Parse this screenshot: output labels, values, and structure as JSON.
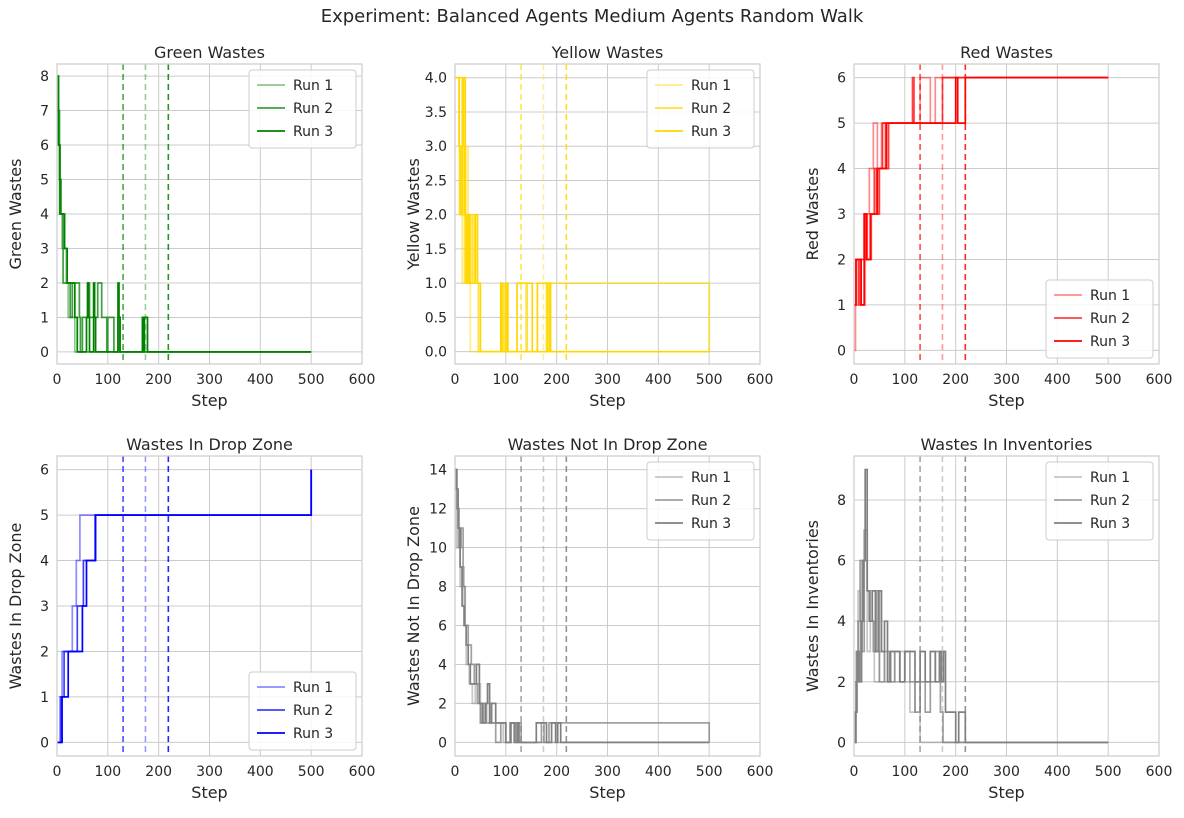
{
  "suptitle": "Experiment: Balanced Agents Medium Agents Random Walk",
  "chart_data": [
    {
      "type": "line",
      "title": "Green Wastes",
      "xlabel": "Step",
      "ylabel": "Green Wastes",
      "xlim": [
        0,
        600
      ],
      "ylim": [
        -0.35,
        8.35
      ],
      "xticks": [
        0,
        100,
        200,
        300,
        400,
        500,
        600
      ],
      "yticks": [
        0,
        1,
        2,
        3,
        4,
        5,
        6,
        7,
        8
      ],
      "ytick_labels": [
        "0",
        "1",
        "2",
        "3",
        "4",
        "5",
        "6",
        "7",
        "8"
      ],
      "grid": true,
      "legend": "upper right",
      "vlines": [
        {
          "x": 130,
          "alpha": 0.7
        },
        {
          "x": 174,
          "alpha": 0.4
        },
        {
          "x": 219,
          "alpha": 0.85
        }
      ],
      "series": [
        {
          "name": "Run 1",
          "color": "#008000",
          "alpha": 0.45,
          "x": [
            0,
            3,
            5,
            10,
            12,
            18,
            22,
            26,
            35,
            130,
            500
          ],
          "y": [
            8,
            6,
            4,
            3,
            3,
            2,
            1,
            1,
            0,
            0,
            0
          ]
        },
        {
          "name": "Run 2",
          "color": "#008000",
          "alpha": 0.75,
          "x": [
            0,
            5,
            8,
            12,
            20,
            26,
            30,
            44,
            46,
            50,
            58,
            62,
            64,
            78,
            80,
            88,
            92,
            98,
            100,
            110,
            112,
            120,
            124,
            174,
            500
          ],
          "y": [
            7,
            5,
            4,
            2,
            2,
            1,
            2,
            1,
            0,
            1,
            1,
            2,
            1,
            1,
            2,
            1,
            1,
            0,
            1,
            1,
            0,
            1,
            0,
            0,
            0
          ]
        },
        {
          "name": "Run 3",
          "color": "#008000",
          "alpha": 1.0,
          "x": [
            0,
            3,
            6,
            10,
            15,
            20,
            25,
            35,
            40,
            58,
            60,
            62,
            64,
            70,
            72,
            74,
            76,
            100,
            120,
            122,
            124,
            166,
            168,
            170,
            172,
            175,
            178,
            500
          ],
          "y": [
            8,
            6,
            4,
            4,
            3,
            2,
            2,
            1,
            0,
            1,
            2,
            1,
            0,
            0,
            2,
            1,
            0,
            0,
            2,
            1,
            0,
            0,
            1,
            0,
            1,
            1,
            0,
            0
          ]
        }
      ]
    },
    {
      "type": "line",
      "title": "Yellow Wastes",
      "xlabel": "Step",
      "ylabel": "Yellow Wastes",
      "xlim": [
        0,
        600
      ],
      "ylim": [
        -0.18,
        4.2
      ],
      "xticks": [
        0,
        100,
        200,
        300,
        400,
        500,
        600
      ],
      "yticks": [
        0,
        0.5,
        1.0,
        1.5,
        2.0,
        2.5,
        3.0,
        3.5,
        4.0
      ],
      "ytick_labels": [
        "0.0",
        "0.5",
        "1.0",
        "1.5",
        "2.0",
        "2.5",
        "3.0",
        "3.5",
        "4.0"
      ],
      "grid": true,
      "legend": "upper right",
      "vlines": [
        {
          "x": 130,
          "alpha": 0.7
        },
        {
          "x": 174,
          "alpha": 0.4
        },
        {
          "x": 219,
          "alpha": 0.85
        }
      ],
      "series": [
        {
          "name": "Run 1",
          "color": "#FFD700",
          "alpha": 0.45,
          "x": [
            0,
            6,
            8,
            12,
            14,
            18,
            20,
            24,
            26,
            28,
            30,
            500
          ],
          "y": [
            4,
            4,
            2,
            3,
            1,
            4,
            2,
            3,
            1,
            2,
            0,
            0
          ]
        },
        {
          "name": "Run 2",
          "color": "#FFD700",
          "alpha": 0.75,
          "x": [
            0,
            10,
            14,
            18,
            20,
            24,
            26,
            30,
            34,
            38,
            44,
            46,
            48,
            95,
            97,
            100,
            103,
            140,
            142,
            180,
            500
          ],
          "y": [
            4,
            4,
            2,
            3,
            1,
            2,
            1,
            2,
            1,
            2,
            1,
            0,
            0,
            1,
            0,
            1,
            0,
            1,
            0,
            1,
            0
          ]
        },
        {
          "name": "Run 3",
          "color": "#FFD700",
          "alpha": 1.0,
          "x": [
            0,
            8,
            10,
            14,
            16,
            20,
            22,
            26,
            28,
            34,
            40,
            44,
            48,
            50,
            88,
            90,
            92,
            100,
            102,
            104,
            120,
            122,
            150,
            152,
            160,
            162,
            180,
            182,
            186,
            188,
            500
          ],
          "y": [
            4,
            3,
            2,
            3,
            4,
            2,
            1,
            2,
            1,
            1,
            2,
            1,
            1,
            0,
            0,
            1,
            0,
            0,
            1,
            0,
            0,
            1,
            1,
            0,
            0,
            1,
            1,
            0,
            1,
            0,
            0
          ]
        }
      ]
    },
    {
      "type": "line",
      "title": "Red Wastes",
      "xlabel": "Step",
      "ylabel": "Red Wastes",
      "xlim": [
        0,
        600
      ],
      "ylim": [
        -0.3,
        6.3
      ],
      "xticks": [
        0,
        100,
        200,
        300,
        400,
        500,
        600
      ],
      "yticks": [
        0,
        1,
        2,
        3,
        4,
        5,
        6
      ],
      "ytick_labels": [
        "0",
        "1",
        "2",
        "3",
        "4",
        "5",
        "6"
      ],
      "grid": true,
      "legend": "lower right",
      "vlines": [
        {
          "x": 130,
          "alpha": 0.7
        },
        {
          "x": 174,
          "alpha": 0.4
        },
        {
          "x": 219,
          "alpha": 0.85
        }
      ],
      "series": [
        {
          "name": "Run 1",
          "color": "#FF0000",
          "alpha": 0.45,
          "x": [
            0,
            3,
            8,
            14,
            22,
            30,
            38,
            46,
            54,
            62,
            130,
            150,
            160,
            500
          ],
          "y": [
            0,
            1,
            2,
            1,
            3,
            4,
            5,
            4,
            5,
            5,
            6,
            5,
            6,
            6
          ]
        },
        {
          "name": "Run 2",
          "color": "#FF0000",
          "alpha": 0.75,
          "x": [
            0,
            4,
            10,
            14,
            20,
            26,
            34,
            40,
            44,
            50,
            56,
            62,
            68,
            76,
            115,
            118,
            125,
            174,
            500
          ],
          "y": [
            1,
            2,
            1,
            2,
            3,
            2,
            3,
            4,
            3,
            4,
            5,
            4,
            5,
            5,
            6,
            5,
            5,
            6,
            6
          ]
        },
        {
          "name": "Run 3",
          "color": "#FF0000",
          "alpha": 1.0,
          "x": [
            0,
            4,
            10,
            14,
            20,
            24,
            32,
            40,
            46,
            52,
            58,
            64,
            72,
            130,
            180,
            200,
            204,
            212,
            219,
            500
          ],
          "y": [
            1,
            2,
            2,
            1,
            3,
            2,
            3,
            3,
            4,
            4,
            4,
            5,
            5,
            5,
            5,
            6,
            5,
            5,
            6,
            6
          ]
        }
      ]
    },
    {
      "type": "line",
      "title": "Wastes In Drop Zone",
      "xlabel": "Step",
      "ylabel": "Wastes In Drop Zone",
      "xlim": [
        0,
        600
      ],
      "ylim": [
        -0.3,
        6.3
      ],
      "xticks": [
        0,
        100,
        200,
        300,
        400,
        500,
        600
      ],
      "yticks": [
        0,
        1,
        2,
        3,
        4,
        5,
        6
      ],
      "ytick_labels": [
        "0",
        "1",
        "2",
        "3",
        "4",
        "5",
        "6"
      ],
      "grid": true,
      "legend": "lower right",
      "vlines": [
        {
          "x": 130,
          "alpha": 0.7
        },
        {
          "x": 174,
          "alpha": 0.4
        },
        {
          "x": 219,
          "alpha": 0.85
        }
      ],
      "series": [
        {
          "name": "Run 1",
          "color": "#0000FF",
          "alpha": 0.45,
          "x": [
            0,
            6,
            10,
            20,
            30,
            38,
            45,
            130,
            500
          ],
          "y": [
            0,
            1,
            2,
            2,
            3,
            4,
            5,
            5,
            6
          ]
        },
        {
          "name": "Run 2",
          "color": "#0000FF",
          "alpha": 0.75,
          "x": [
            0,
            8,
            14,
            25,
            40,
            52,
            75,
            174,
            500
          ],
          "y": [
            0,
            1,
            2,
            2,
            3,
            4,
            5,
            5,
            6
          ]
        },
        {
          "name": "Run 3",
          "color": "#0000FF",
          "alpha": 1.0,
          "x": [
            0,
            10,
            22,
            36,
            50,
            58,
            76,
            219,
            500
          ],
          "y": [
            0,
            1,
            2,
            2,
            3,
            4,
            5,
            5,
            6
          ]
        }
      ]
    },
    {
      "type": "line",
      "title": "Wastes Not In Drop Zone",
      "xlabel": "Step",
      "ylabel": "Wastes Not In Drop Zone",
      "xlim": [
        0,
        600
      ],
      "ylim": [
        -0.7,
        14.7
      ],
      "xticks": [
        0,
        100,
        200,
        300,
        400,
        500,
        600
      ],
      "yticks": [
        0,
        2,
        4,
        6,
        8,
        10,
        12,
        14
      ],
      "ytick_labels": [
        "0",
        "2",
        "4",
        "6",
        "8",
        "10",
        "12",
        "14"
      ],
      "grid": true,
      "legend": "upper right",
      "vlines": [
        {
          "x": 130,
          "alpha": 0.7
        },
        {
          "x": 174,
          "alpha": 0.4
        },
        {
          "x": 219,
          "alpha": 0.85
        }
      ],
      "series": [
        {
          "name": "Run 1",
          "color": "#808080",
          "alpha": 0.45,
          "x": [
            0,
            3,
            6,
            10,
            14,
            18,
            22,
            28,
            34,
            40,
            50,
            60,
            70,
            80,
            95,
            110,
            125,
            135,
            500
          ],
          "y": [
            14,
            10,
            11,
            8,
            9,
            6,
            4,
            3,
            2,
            3,
            1,
            2,
            1,
            1,
            0,
            1,
            0,
            0,
            0
          ]
        },
        {
          "name": "Run 2",
          "color": "#808080",
          "alpha": 0.75,
          "x": [
            0,
            4,
            8,
            12,
            16,
            20,
            26,
            32,
            38,
            44,
            50,
            56,
            62,
            70,
            80,
            90,
            100,
            108,
            116,
            124,
            130,
            170,
            175,
            185,
            500
          ],
          "y": [
            14,
            12,
            10,
            11,
            8,
            6,
            5,
            4,
            3,
            2,
            1,
            2,
            1,
            1,
            0,
            1,
            0,
            1,
            0,
            1,
            0,
            1,
            0,
            1,
            0
          ]
        },
        {
          "name": "Run 3",
          "color": "#808080",
          "alpha": 1.0,
          "x": [
            0,
            3,
            6,
            10,
            14,
            18,
            22,
            26,
            30,
            36,
            42,
            48,
            54,
            60,
            64,
            68,
            72,
            80,
            90,
            100,
            110,
            118,
            122,
            126,
            150,
            160,
            175,
            180,
            190,
            198,
            202,
            208,
            212,
            500
          ],
          "y": [
            14,
            13,
            11,
            9,
            7,
            6,
            5,
            4,
            3,
            3,
            4,
            2,
            1,
            2,
            3,
            1,
            2,
            1,
            1,
            0,
            1,
            0,
            1,
            0,
            0,
            1,
            1,
            0,
            1,
            0,
            1,
            0,
            0,
            0
          ]
        }
      ]
    },
    {
      "type": "line",
      "title": "Wastes In Inventories",
      "xlabel": "Step",
      "ylabel": "Wastes In Inventories",
      "xlim": [
        0,
        600
      ],
      "ylim": [
        -0.45,
        9.45
      ],
      "xticks": [
        0,
        100,
        200,
        300,
        400,
        500,
        600
      ],
      "yticks": [
        0,
        2,
        4,
        6,
        8
      ],
      "ytick_labels": [
        "0",
        "2",
        "4",
        "6",
        "8"
      ],
      "grid": true,
      "legend": "upper right",
      "vlines": [
        {
          "x": 130,
          "alpha": 0.7
        },
        {
          "x": 174,
          "alpha": 0.4
        },
        {
          "x": 219,
          "alpha": 0.85
        }
      ],
      "series": [
        {
          "name": "Run 1",
          "color": "#808080",
          "alpha": 0.45,
          "x": [
            0,
            4,
            8,
            12,
            16,
            20,
            26,
            32,
            40,
            50,
            60,
            70,
            80,
            90,
            100,
            110,
            120,
            130,
            500
          ],
          "y": [
            0,
            3,
            5,
            2,
            4,
            6,
            3,
            4,
            2,
            3,
            2,
            3,
            2,
            3,
            2,
            1,
            2,
            0,
            0
          ]
        },
        {
          "name": "Run 2",
          "color": "#808080",
          "alpha": 0.75,
          "x": [
            0,
            4,
            8,
            12,
            16,
            20,
            26,
            32,
            38,
            44,
            50,
            60,
            70,
            80,
            90,
            100,
            110,
            120,
            130,
            140,
            150,
            160,
            170,
            175,
            500
          ],
          "y": [
            0,
            2,
            4,
            6,
            3,
            7,
            5,
            4,
            3,
            5,
            2,
            3,
            2,
            3,
            2,
            3,
            2,
            1,
            2,
            1,
            2,
            3,
            1,
            0,
            0
          ]
        },
        {
          "name": "Run 3",
          "color": "#808080",
          "alpha": 1.0,
          "x": [
            0,
            3,
            6,
            10,
            14,
            18,
            22,
            26,
            30,
            36,
            42,
            48,
            54,
            60,
            66,
            72,
            80,
            90,
            100,
            110,
            120,
            130,
            140,
            150,
            160,
            168,
            172,
            176,
            180,
            190,
            200,
            206,
            212,
            219,
            500
          ],
          "y": [
            0,
            1,
            3,
            2,
            4,
            6,
            9,
            5,
            4,
            5,
            3,
            5,
            3,
            4,
            2,
            3,
            3,
            2,
            3,
            3,
            2,
            3,
            2,
            3,
            2,
            3,
            2,
            3,
            1,
            1,
            0,
            1,
            1,
            0,
            0
          ]
        }
      ]
    }
  ]
}
